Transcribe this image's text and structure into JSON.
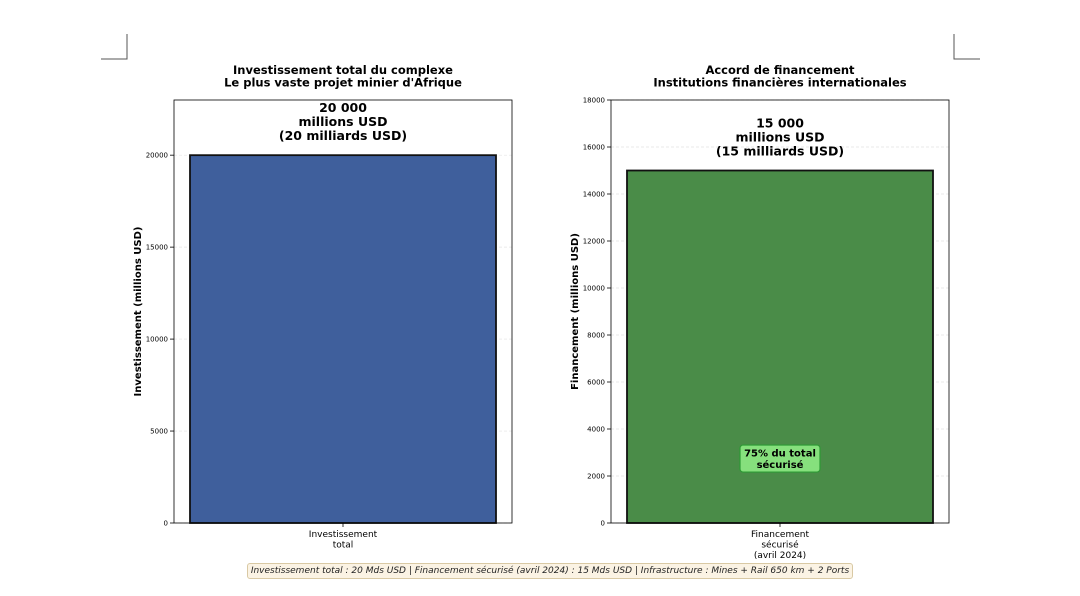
{
  "chart_data": [
    {
      "type": "bar",
      "title": "Investissement total du complexe",
      "subtitle": "Le plus vaste projet minier d'Afrique",
      "ylabel": "Investissement (millions USD)",
      "xlabel": "",
      "ylim": [
        0,
        23000
      ],
      "yticks": [
        0,
        5000,
        10000,
        15000,
        20000
      ],
      "grid": true,
      "categories": [
        "Investissement total"
      ],
      "category_lines": [
        [
          "Investissement",
          "total"
        ]
      ],
      "values": [
        20000
      ],
      "bar_color": "#3f5f9c",
      "value_label_lines": [
        "20 000",
        "millions USD",
        "(20 milliards USD)"
      ]
    },
    {
      "type": "bar",
      "title": "Accord de financement",
      "subtitle": "Institutions financières internationales",
      "ylabel": "Financement (millions USD)",
      "xlabel": "",
      "ylim": [
        0,
        18000
      ],
      "yticks": [
        0,
        2000,
        4000,
        6000,
        8000,
        10000,
        12000,
        14000,
        16000,
        18000
      ],
      "grid": true,
      "categories": [
        "Financement sécurisé (avril 2024)"
      ],
      "category_lines": [
        [
          "Financement",
          "sécurisé",
          "(avril 2024)"
        ]
      ],
      "values": [
        15000
      ],
      "bar_color": "#4a8c48",
      "value_label_lines": [
        "15 000",
        "millions USD",
        "(15 milliards USD)"
      ],
      "annotation": {
        "lines": [
          "75% du total",
          "sécurisé"
        ],
        "y": 2700,
        "fill": "#86e07d",
        "border": "#2e9a35"
      }
    }
  ],
  "footnote": "Investissement total : 20 Mds USD | Financement sécurisé (avril 2024) : 15 Mds USD | Infrastructure : Mines + Rail 650 km + 2 Ports"
}
